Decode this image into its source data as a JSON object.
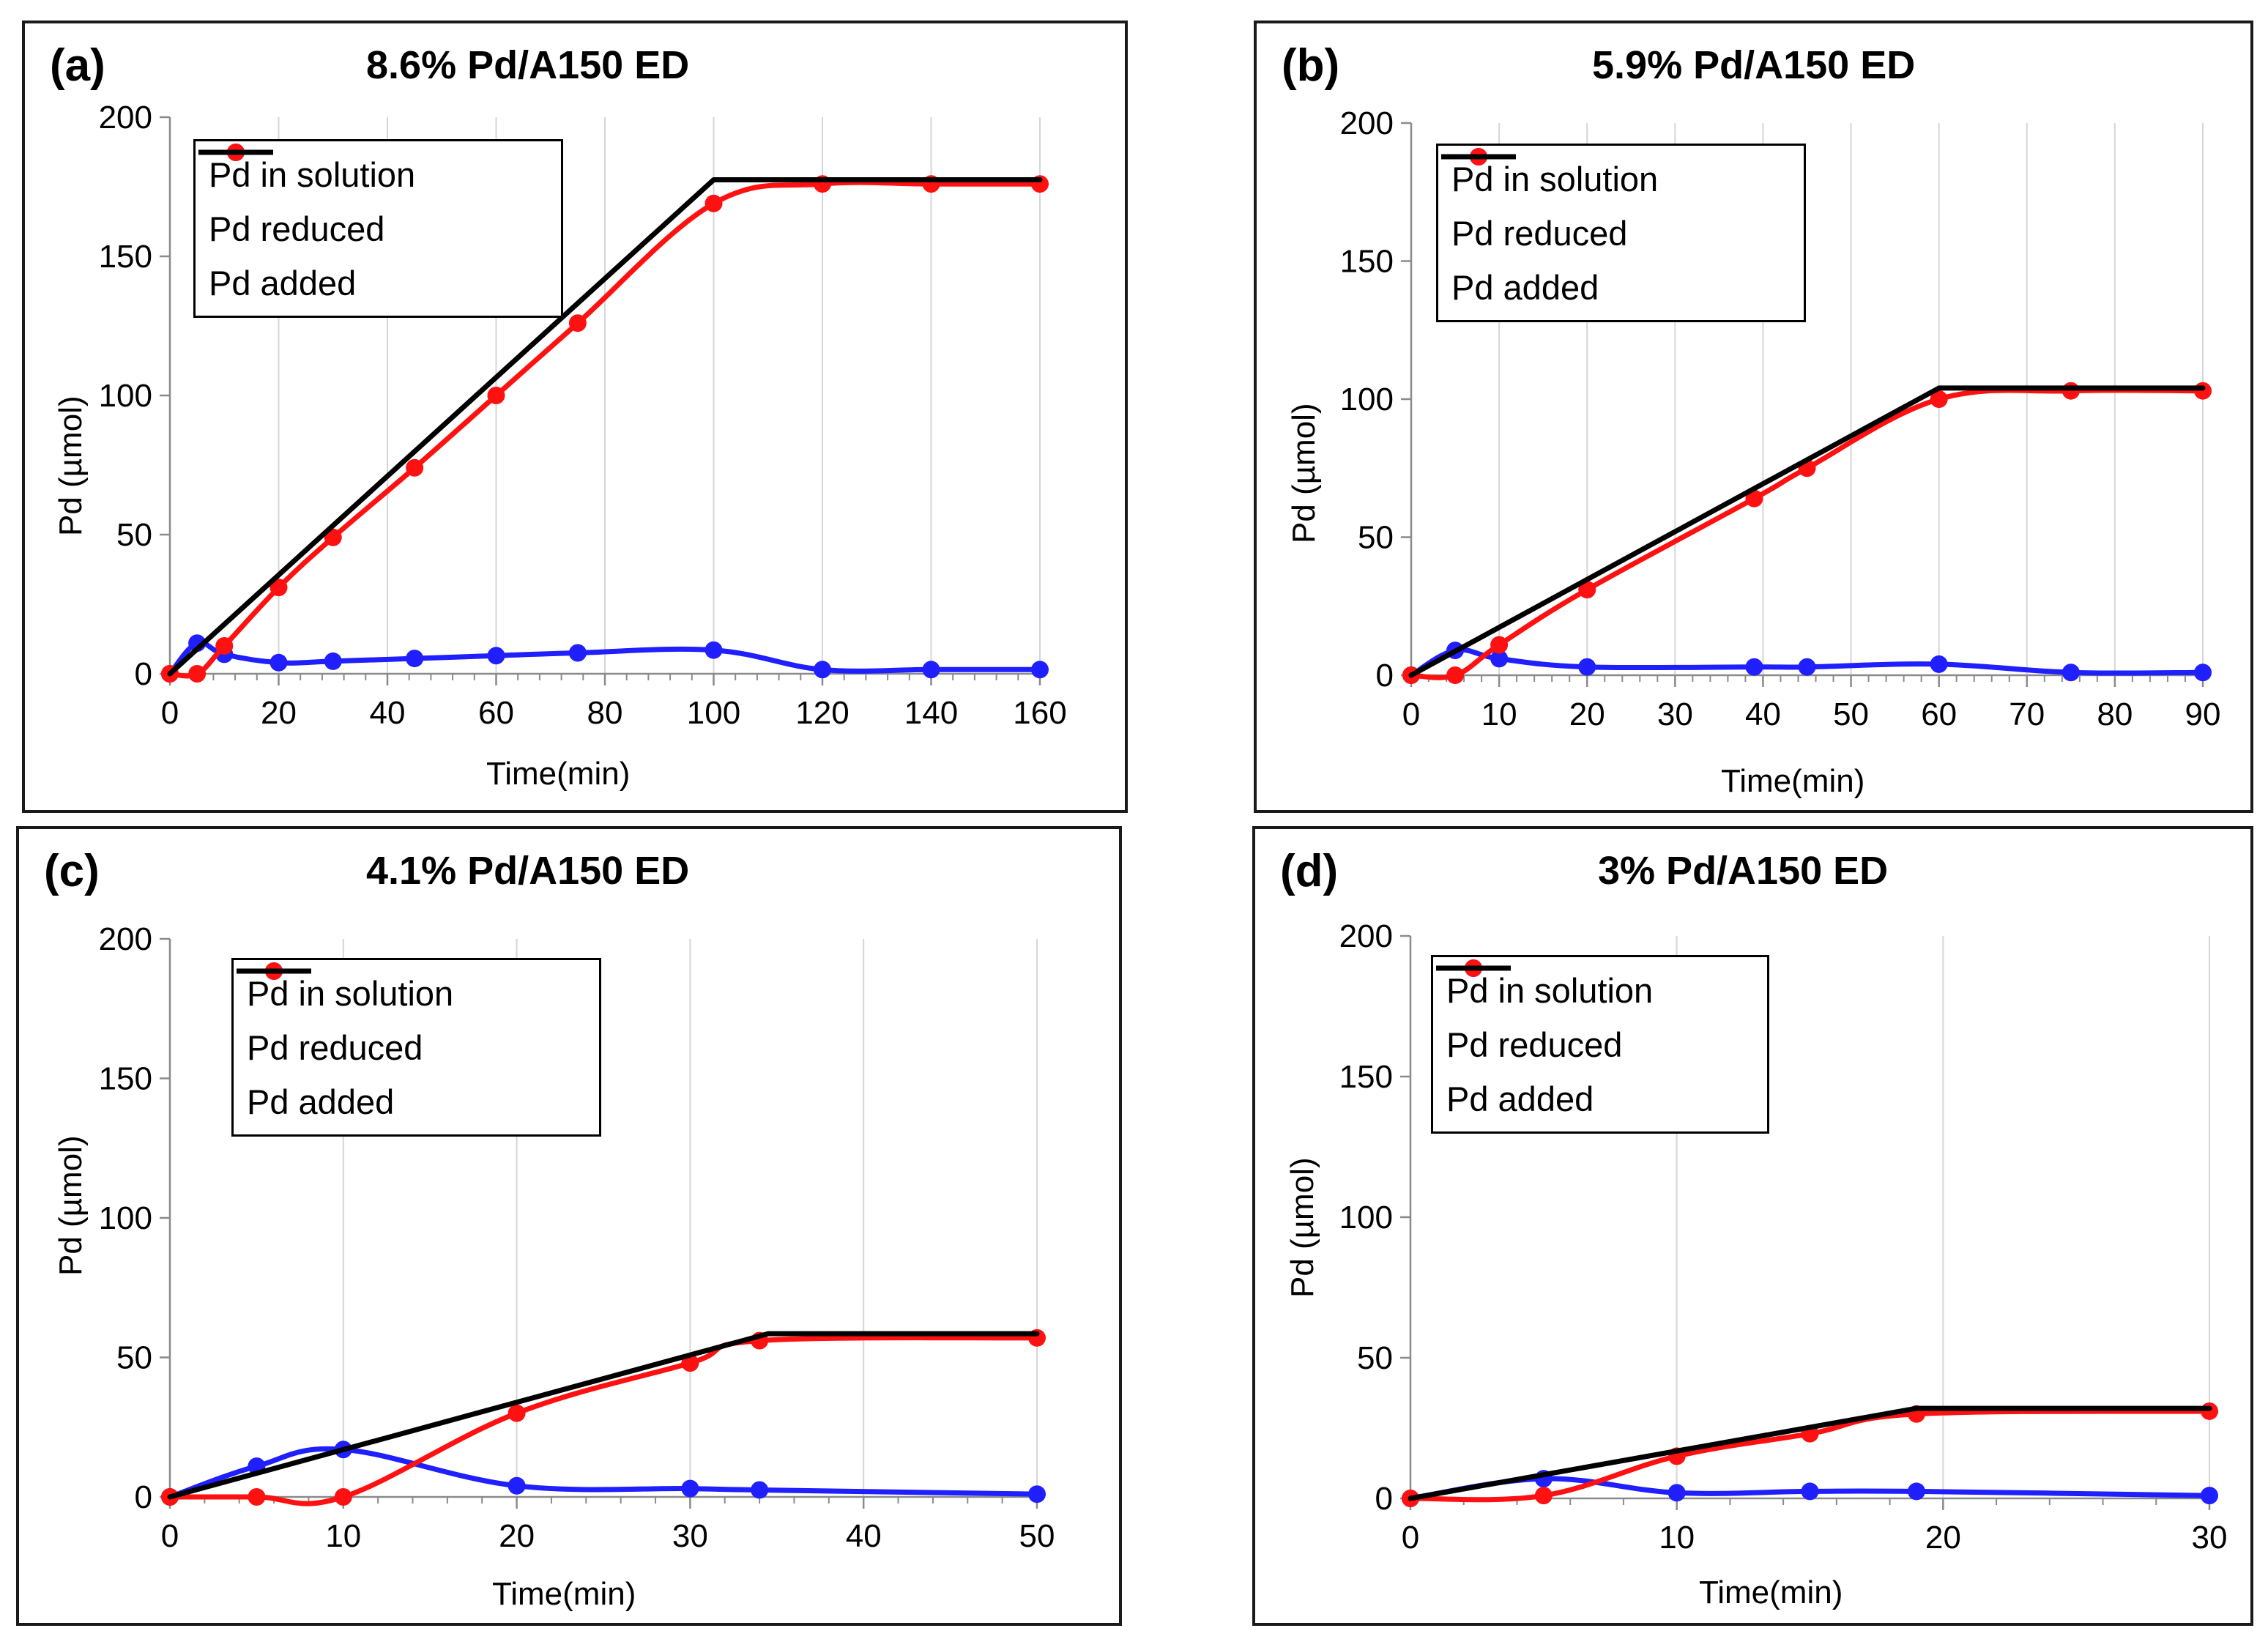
{
  "figure": {
    "colors": {
      "solution": "#1f1fff",
      "reduced": "#ff1111",
      "added": "#000000"
    }
  },
  "chart_data": [
    {
      "type": "line",
      "tag": "(a)",
      "title": "8.6% Pd/A150 ED",
      "xlabel": "Time(min)",
      "ylabel": "Pd (µmol)",
      "xlim": [
        0,
        160
      ],
      "ylim": [
        0,
        200
      ],
      "xticks": [
        0,
        20,
        40,
        60,
        80,
        100,
        120,
        140,
        160
      ],
      "yticks": [
        0,
        50,
        100,
        150,
        200
      ],
      "legend": {
        "position": "top-left",
        "entries": [
          "Pd in solution",
          "Pd reduced",
          "Pd added"
        ]
      },
      "series": [
        {
          "name": "Pd in solution",
          "color": "#1f1fff",
          "markers": true,
          "x": [
            0,
            5,
            10,
            20,
            30,
            45,
            60,
            75,
            100,
            120,
            140,
            160
          ],
          "y": [
            0,
            11,
            7,
            4,
            4.5,
            5.5,
            6.5,
            7.5,
            8.5,
            1.5,
            1.5,
            1.5
          ]
        },
        {
          "name": "Pd reduced",
          "color": "#ff1111",
          "markers": true,
          "x": [
            0,
            5,
            10,
            20,
            30,
            45,
            60,
            75,
            100,
            120,
            140,
            160
          ],
          "y": [
            0,
            0,
            10,
            31,
            49,
            74,
            100,
            126,
            169,
            176,
            176,
            176
          ]
        },
        {
          "name": "Pd added",
          "color": "#000000",
          "markers": false,
          "x": [
            0,
            100,
            160
          ],
          "y": [
            0,
            177.5,
            177.5
          ]
        }
      ]
    },
    {
      "type": "line",
      "tag": "(b)",
      "title": "5.9% Pd/A150 ED",
      "xlabel": "Time(min)",
      "ylabel": "Pd (µmol)",
      "xlim": [
        0,
        90
      ],
      "ylim": [
        0,
        200
      ],
      "xticks": [
        0,
        10,
        20,
        30,
        40,
        50,
        60,
        70,
        80,
        90
      ],
      "yticks": [
        0,
        50,
        100,
        150,
        200
      ],
      "legend": {
        "position": "top-left",
        "entries": [
          "Pd in solution",
          "Pd reduced",
          "Pd added"
        ]
      },
      "series": [
        {
          "name": "Pd in solution",
          "color": "#1f1fff",
          "markers": true,
          "x": [
            0,
            5,
            10,
            20,
            39,
            45,
            60,
            75,
            90
          ],
          "y": [
            0,
            9,
            6,
            3,
            3,
            3,
            4,
            1,
            1
          ]
        },
        {
          "name": "Pd reduced",
          "color": "#ff1111",
          "markers": true,
          "x": [
            0,
            5,
            10,
            20,
            39,
            45,
            60,
            75,
            90
          ],
          "y": [
            0,
            0,
            11,
            31,
            64,
            75,
            100,
            103,
            103
          ]
        },
        {
          "name": "Pd added",
          "color": "#000000",
          "markers": false,
          "x": [
            0,
            60,
            90
          ],
          "y": [
            0,
            104,
            104
          ]
        }
      ]
    },
    {
      "type": "line",
      "tag": "(c)",
      "title": "4.1% Pd/A150 ED",
      "xlabel": "Time(min)",
      "ylabel": "Pd (µmol)",
      "xlim": [
        0,
        50
      ],
      "ylim": [
        0,
        200
      ],
      "xticks": [
        0,
        10,
        20,
        30,
        40,
        50
      ],
      "yticks": [
        0,
        50,
        100,
        150,
        200
      ],
      "legend": {
        "position": "top-left",
        "entries": [
          "Pd in solution",
          "Pd reduced",
          "Pd added"
        ]
      },
      "series": [
        {
          "name": "Pd in solution",
          "color": "#1f1fff",
          "markers": true,
          "x": [
            0,
            5,
            10,
            20,
            30,
            34,
            50
          ],
          "y": [
            0,
            11,
            17,
            4,
            3,
            2.5,
            1
          ]
        },
        {
          "name": "Pd reduced",
          "color": "#ff1111",
          "markers": true,
          "x": [
            0,
            5,
            10,
            20,
            30,
            34,
            50
          ],
          "y": [
            0,
            0,
            0,
            30,
            48,
            56,
            57
          ]
        },
        {
          "name": "Pd added",
          "color": "#000000",
          "markers": false,
          "x": [
            0,
            34.5,
            50
          ],
          "y": [
            0,
            58.5,
            58.5
          ]
        }
      ]
    },
    {
      "type": "line",
      "tag": "(d)",
      "title": "3% Pd/A150 ED",
      "xlabel": "Time(min)",
      "ylabel": "Pd (µmol)",
      "xlim": [
        0,
        30
      ],
      "ylim": [
        0,
        200
      ],
      "xticks": [
        0,
        10,
        20,
        30
      ],
      "yticks": [
        0,
        50,
        100,
        150,
        200
      ],
      "legend": {
        "position": "top-left",
        "entries": [
          "Pd in solution",
          "Pd reduced",
          "Pd added"
        ]
      },
      "series": [
        {
          "name": "Pd in solution",
          "color": "#1f1fff",
          "markers": true,
          "x": [
            0,
            5,
            10,
            15,
            19,
            30
          ],
          "y": [
            0,
            7,
            2,
            2.5,
            2.5,
            1
          ]
        },
        {
          "name": "Pd reduced",
          "color": "#ff1111",
          "markers": true,
          "x": [
            0,
            5,
            10,
            15,
            19,
            30
          ],
          "y": [
            0,
            1,
            15,
            23,
            30,
            31
          ]
        },
        {
          "name": "Pd added",
          "color": "#000000",
          "markers": false,
          "x": [
            0,
            19,
            30
          ],
          "y": [
            0,
            32,
            32
          ]
        }
      ]
    }
  ]
}
